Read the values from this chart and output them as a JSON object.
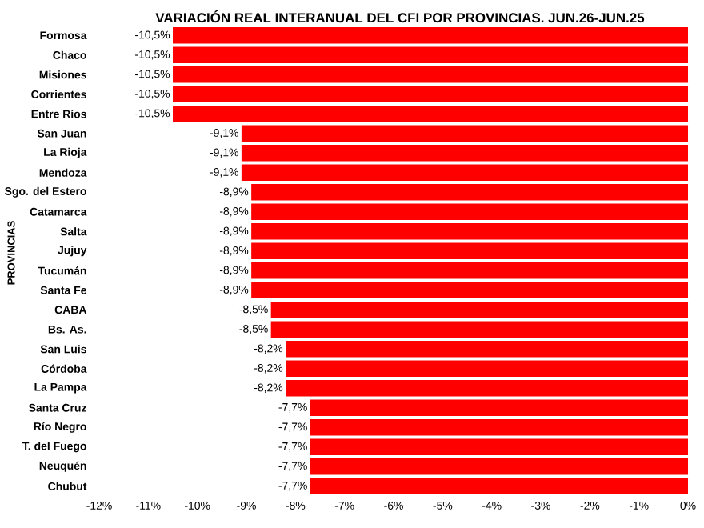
{
  "chart_data": {
    "type": "bar",
    "orientation": "horizontal",
    "title": "VARIACIÓN REAL INTERANUAL DEL CFI POR PROVINCIAS. JUN.26-JUN.25",
    "ylabel": "PROVINCIAS",
    "categories": [
      "Formosa",
      "Chaco",
      "Misiones",
      "Corrientes",
      "Entre Ríos",
      "San Juan",
      "La Rioja",
      "Mendoza",
      "Sgo. del Estero",
      "Catamarca",
      "Salta",
      "Jujuy",
      "Tucumán",
      "Santa Fe",
      "CABA",
      "Bs. As.",
      "San Luis",
      "Córdoba",
      "La Pampa",
      "Santa Cruz",
      "Río Negro",
      "T. del Fuego",
      "Neuquén",
      "Chubut"
    ],
    "values": [
      -10.5,
      -10.5,
      -10.5,
      -10.5,
      -10.5,
      -9.1,
      -9.1,
      -9.1,
      -8.9,
      -8.9,
      -8.9,
      -8.9,
      -8.9,
      -8.9,
      -8.5,
      -8.5,
      -8.2,
      -8.2,
      -8.2,
      -7.7,
      -7.7,
      -7.7,
      -7.7,
      -7.7
    ],
    "value_labels": [
      "-10,5%",
      "-10,5%",
      "-10,5%",
      "-10,5%",
      "-10,5%",
      "-9,1%",
      "-9,1%",
      "-9,1%",
      "-8,9%",
      "-8,9%",
      "-8,9%",
      "-8,9%",
      "-8,9%",
      "-8,9%",
      "-8,5%",
      "-8,5%",
      "-8,2%",
      "-8,2%",
      "-8,2%",
      "-7,7%",
      "-7,7%",
      "-7,7%",
      "-7,7%",
      "-7,7%"
    ],
    "color": "#ff0000",
    "xlim": [
      -12,
      0
    ],
    "xticks": [
      {
        "value": -12,
        "label": "-12%"
      },
      {
        "value": -11,
        "label": "-11%"
      },
      {
        "value": -10,
        "label": "-10%"
      },
      {
        "value": -9,
        "label": "-9%"
      },
      {
        "value": -8,
        "label": "-8%"
      },
      {
        "value": -7,
        "label": "-7%"
      },
      {
        "value": -6,
        "label": "-6%"
      },
      {
        "value": -5,
        "label": "-5%"
      },
      {
        "value": -4,
        "label": "-4%"
      },
      {
        "value": -3,
        "label": "-3%"
      },
      {
        "value": -2,
        "label": "-2%"
      },
      {
        "value": -1,
        "label": "-1%"
      },
      {
        "value": 0,
        "label": "0%"
      }
    ]
  }
}
